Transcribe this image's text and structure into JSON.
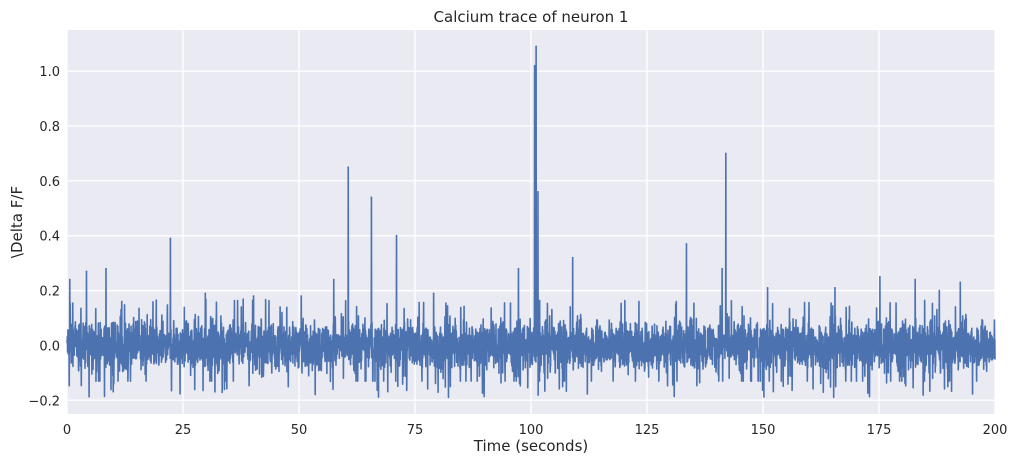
{
  "chart_data": {
    "type": "line",
    "title": "Calcium trace of neuron 1",
    "xlabel": "Time (seconds)",
    "ylabel": "\\Delta F/F",
    "xlim": [
      0,
      200
    ],
    "ylim": [
      -0.25,
      1.15
    ],
    "xticks": [
      0,
      25,
      50,
      75,
      100,
      125,
      150,
      175,
      200
    ],
    "yticks": [
      -0.2,
      0.0,
      0.2,
      0.4,
      0.6,
      0.8,
      1.0
    ],
    "ytick_labels": [
      "−0.2",
      "0.0",
      "0.2",
      "0.4",
      "0.6",
      "0.8",
      "1.0"
    ],
    "grid": true,
    "style": {
      "background": "#EAEAF2",
      "grid_color": "#FFFFFF",
      "line_color": "#4C72B0"
    },
    "series": [
      {
        "name": "",
        "noise_band": [
          -0.13,
          0.13
        ],
        "peaks": [
          {
            "x": 0.6,
            "y": 0.24
          },
          {
            "x": 4.2,
            "y": 0.27
          },
          {
            "x": 8.4,
            "y": 0.28
          },
          {
            "x": 22.3,
            "y": 0.39
          },
          {
            "x": 29.8,
            "y": 0.19
          },
          {
            "x": 40.2,
            "y": 0.18
          },
          {
            "x": 50.5,
            "y": 0.18
          },
          {
            "x": 57.5,
            "y": 0.24
          },
          {
            "x": 60.6,
            "y": 0.65
          },
          {
            "x": 65.6,
            "y": 0.54
          },
          {
            "x": 71.0,
            "y": 0.4
          },
          {
            "x": 79.0,
            "y": 0.19
          },
          {
            "x": 97.3,
            "y": 0.28
          },
          {
            "x": 100.8,
            "y": 1.02
          },
          {
            "x": 101.1,
            "y": 1.09
          },
          {
            "x": 101.5,
            "y": 0.56
          },
          {
            "x": 109.0,
            "y": 0.32
          },
          {
            "x": 133.5,
            "y": 0.37
          },
          {
            "x": 141.2,
            "y": 0.28
          },
          {
            "x": 142.0,
            "y": 0.7
          },
          {
            "x": 151.0,
            "y": 0.21
          },
          {
            "x": 165.5,
            "y": 0.21
          },
          {
            "x": 175.2,
            "y": 0.25
          },
          {
            "x": 182.8,
            "y": 0.24
          },
          {
            "x": 188.0,
            "y": 0.2
          },
          {
            "x": 192.5,
            "y": 0.23
          }
        ]
      }
    ]
  }
}
